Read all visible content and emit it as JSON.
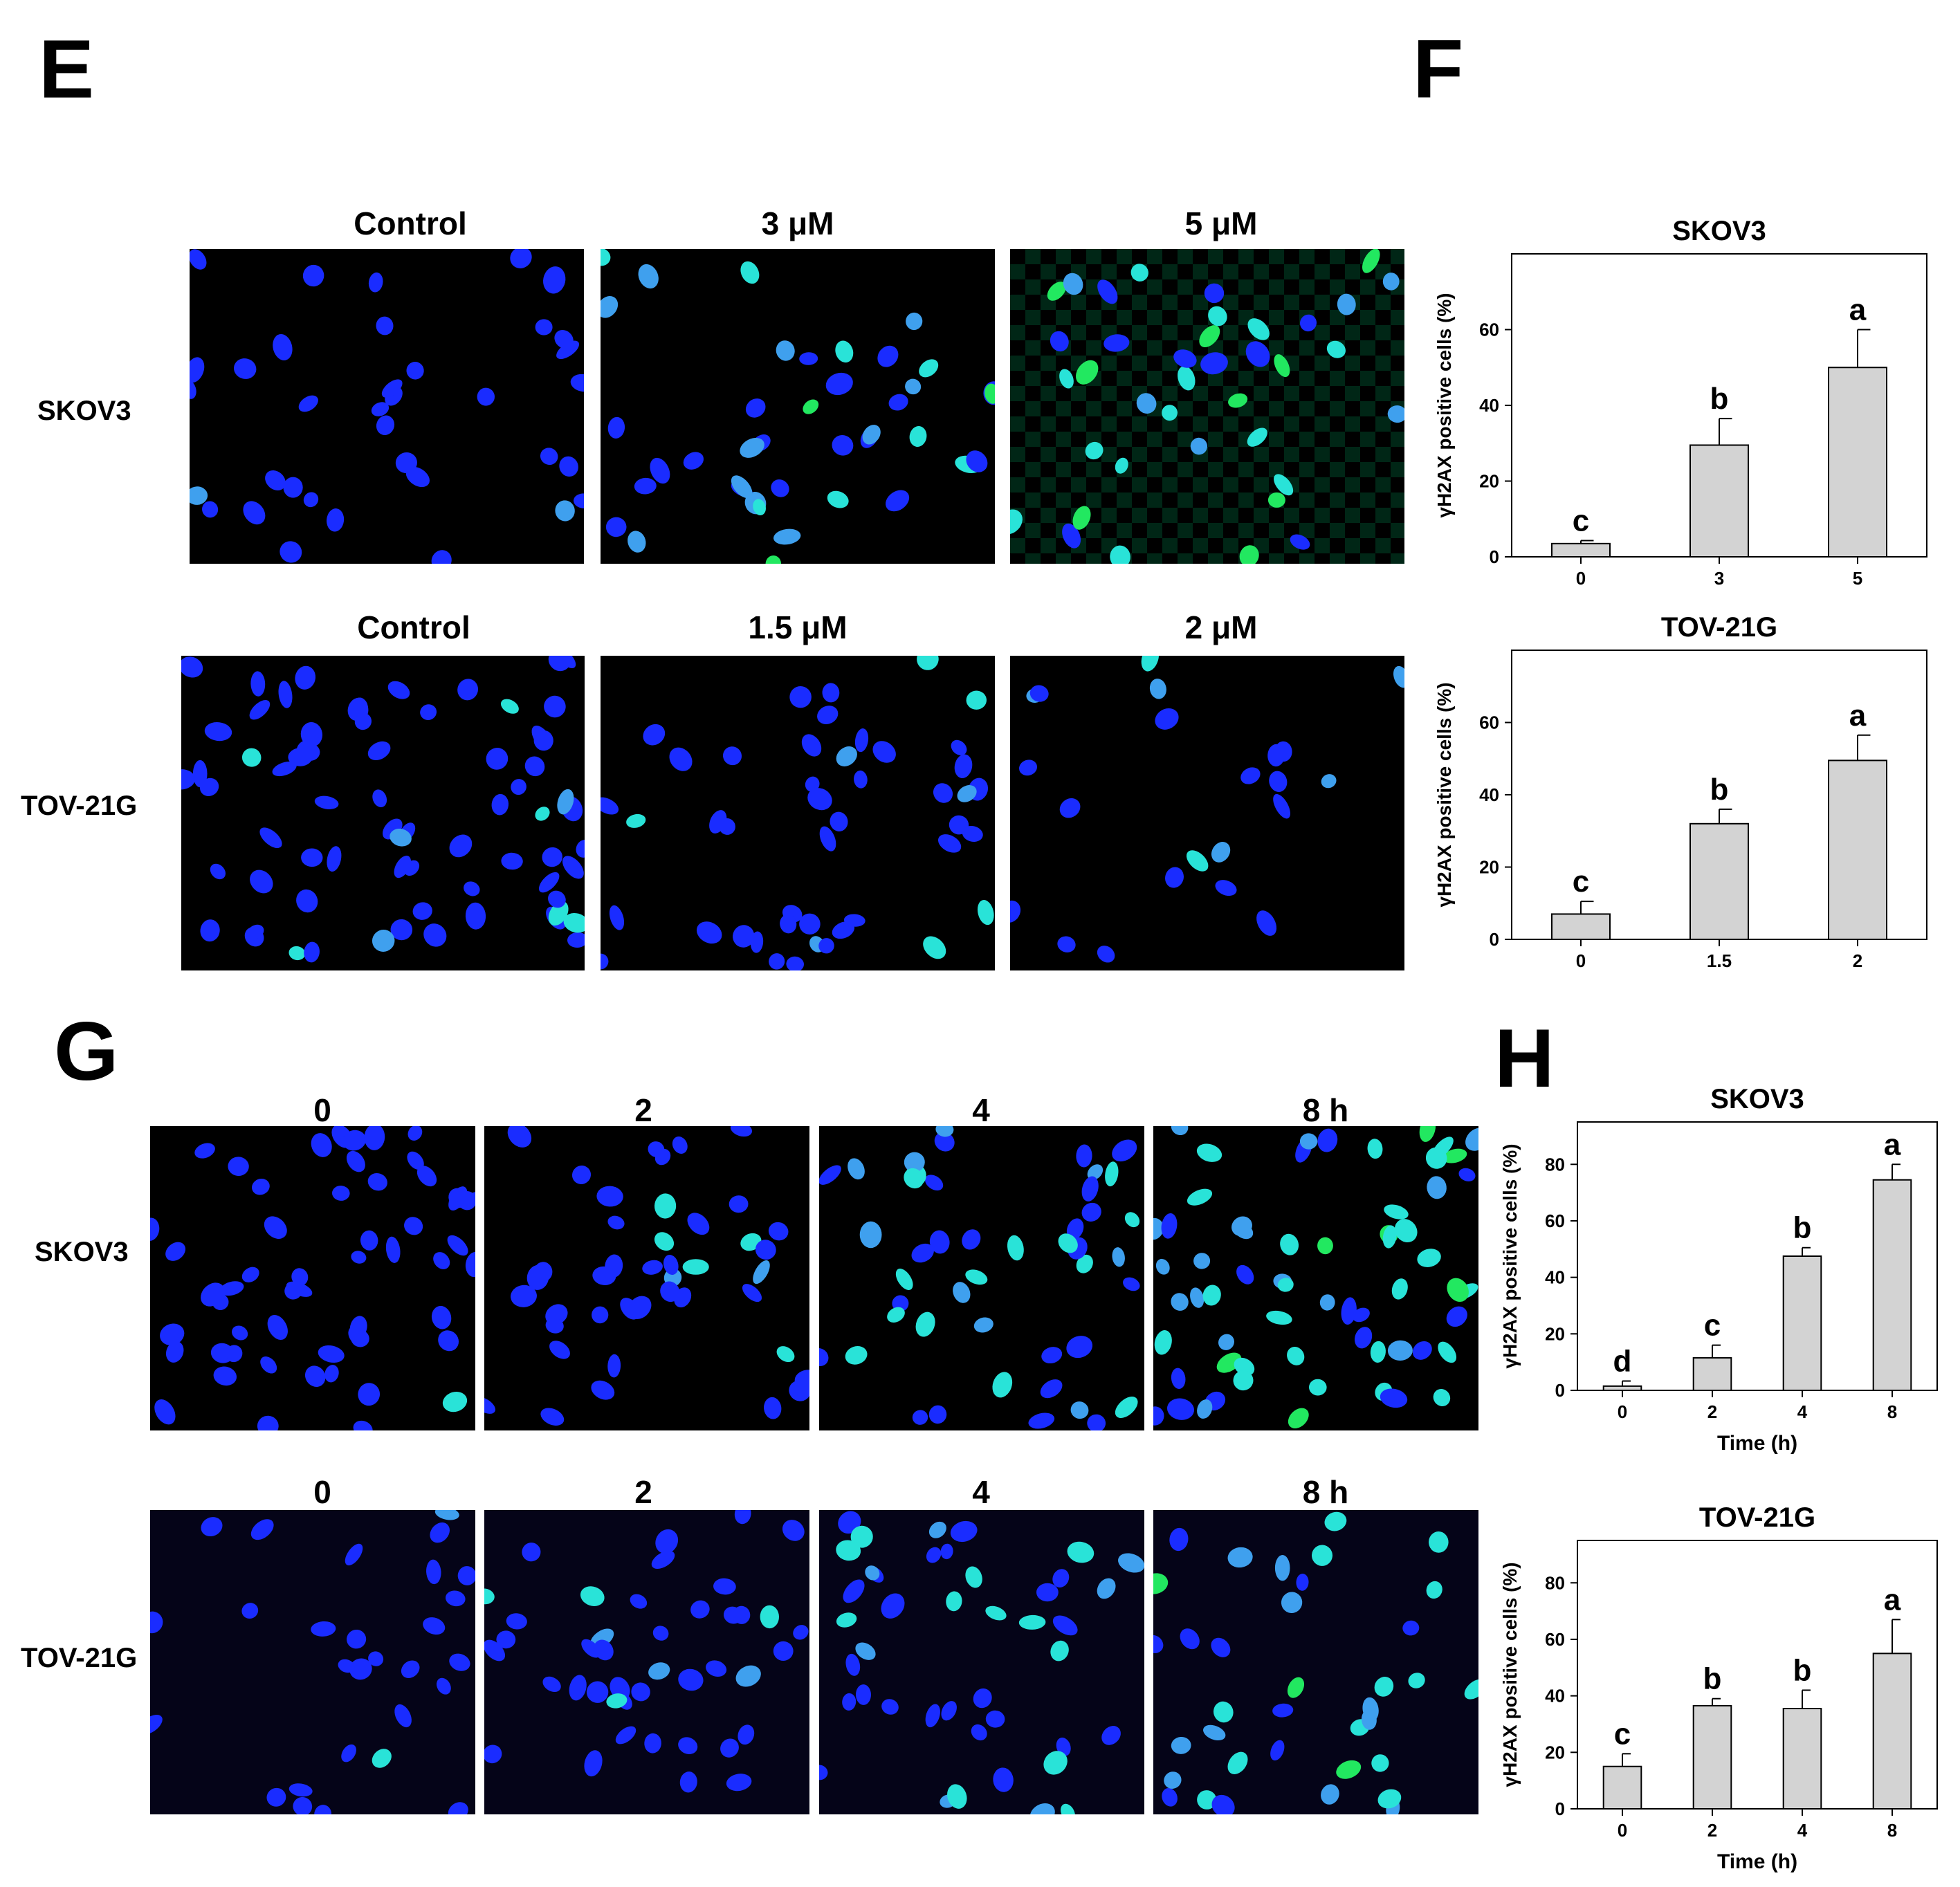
{
  "panels": {
    "E": {
      "letter": "E",
      "columns_top": [
        "Control",
        "3 μM",
        "5 μM"
      ],
      "columns_bottom": [
        "Control",
        "1.5 μM",
        "2 μM"
      ],
      "rows": [
        "SKOV3",
        "TOV-21G"
      ]
    },
    "F": {
      "letter": "F"
    },
    "G": {
      "letter": "G",
      "columns": [
        "0",
        "2",
        "4",
        "8 h"
      ],
      "rows": [
        "SKOV3",
        "TOV-21G"
      ]
    },
    "H": {
      "letter": "H"
    }
  },
  "colors": {
    "nucleus_blue": "#1a2cff",
    "gamma_h2ax_cyan": "#29e3d8",
    "bar_fill": "#d3d3d3"
  },
  "chart_data": [
    {
      "id": "F-SKOV3",
      "type": "bar",
      "title": "SKOV3",
      "ylabel": "γH2AX positive cells (%)",
      "xlabel": "",
      "categories": [
        "0",
        "3",
        "5"
      ],
      "values": [
        3.5,
        29.5,
        50
      ],
      "errors": [
        0.8,
        7,
        10
      ],
      "letters": [
        "c",
        "b",
        "a"
      ],
      "ylim": [
        0,
        80
      ],
      "yticks": [
        0,
        20,
        40,
        60
      ]
    },
    {
      "id": "F-TOV21G",
      "type": "bar",
      "title": "TOV-21G",
      "ylabel": "γH2AX positive cells (%)",
      "xlabel": "",
      "categories": [
        "0",
        "1.5",
        "2"
      ],
      "values": [
        7,
        32,
        49.5
      ],
      "errors": [
        3.5,
        4,
        7
      ],
      "letters": [
        "c",
        "b",
        "a"
      ],
      "ylim": [
        0,
        80
      ],
      "yticks": [
        0,
        20,
        40,
        60
      ]
    },
    {
      "id": "H-SKOV3",
      "type": "bar",
      "title": "SKOV3",
      "ylabel": "γH2AX positive cells (%)",
      "xlabel": "Time (h)",
      "categories": [
        "0",
        "2",
        "4",
        "8"
      ],
      "values": [
        1.5,
        11.5,
        47.5,
        74.5
      ],
      "errors": [
        1.8,
        4.5,
        3,
        5.5
      ],
      "letters": [
        "d",
        "c",
        "b",
        "a"
      ],
      "ylim": [
        0,
        95
      ],
      "yticks": [
        0,
        20,
        40,
        60,
        80
      ]
    },
    {
      "id": "H-TOV21G",
      "type": "bar",
      "title": "TOV-21G",
      "ylabel": "γH2AX positive cells (%)",
      "xlabel": "Time (h)",
      "categories": [
        "0",
        "2",
        "4",
        "8"
      ],
      "values": [
        15,
        36.5,
        35.5,
        55
      ],
      "errors": [
        4.5,
        2.5,
        6.5,
        12
      ],
      "letters": [
        "c",
        "b",
        "b",
        "a"
      ],
      "ylim": [
        0,
        95
      ],
      "yticks": [
        0,
        20,
        40,
        60,
        80
      ]
    }
  ]
}
